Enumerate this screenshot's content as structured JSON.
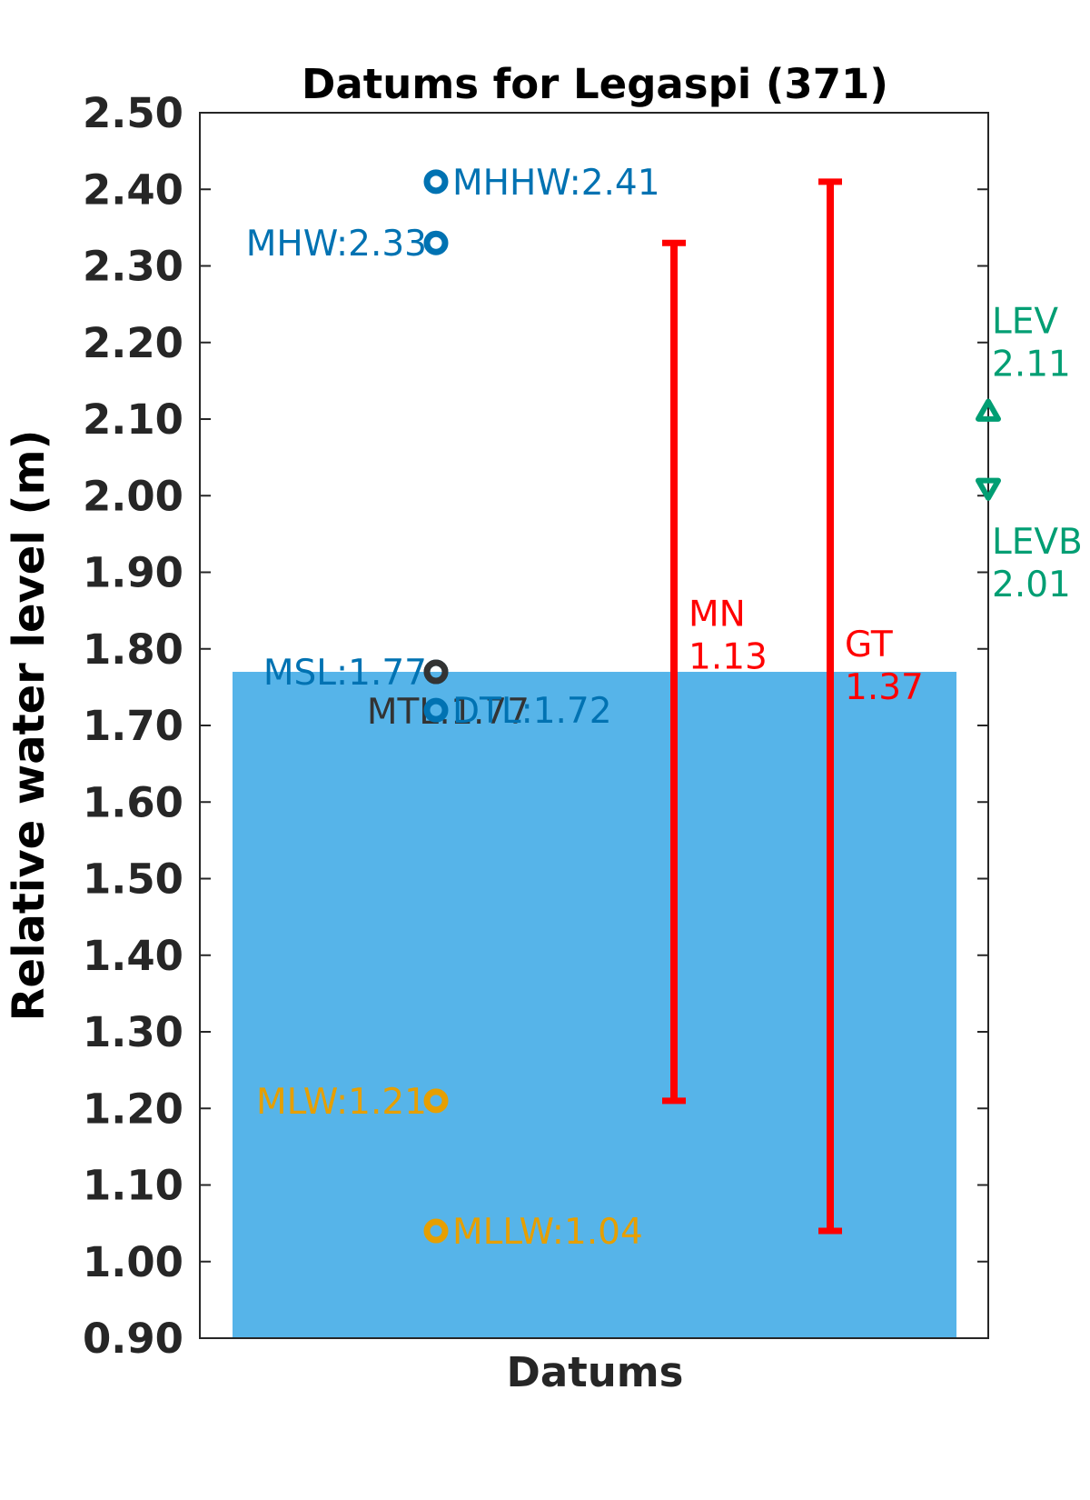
{
  "chart_data": {
    "type": "bar",
    "title": "Datums for Legaspi (371)",
    "xlabel": "Datums",
    "ylabel": "Relative water level (m)",
    "ylim": [
      0.9,
      2.5
    ],
    "yticks": [
      "0.90",
      "1.00",
      "1.10",
      "1.20",
      "1.30",
      "1.40",
      "1.50",
      "1.60",
      "1.70",
      "1.80",
      "1.90",
      "2.00",
      "2.10",
      "2.20",
      "2.30",
      "2.40",
      "2.50"
    ],
    "grid": false,
    "bar": {
      "name": "MSL",
      "value": 1.77,
      "color": "#56b4e9"
    },
    "points": [
      {
        "name": "MHHW",
        "value": 2.41,
        "label": "MHHW:2.41",
        "color": "#0072b2",
        "label_side": "right"
      },
      {
        "name": "MHW",
        "value": 2.33,
        "label": "MHW:2.33",
        "color": "#0072b2",
        "label_side": "left"
      },
      {
        "name": "MSL",
        "value": 1.77,
        "label": "MSL:1.77",
        "color": "#0072b2",
        "label_side": "left"
      },
      {
        "name": "MTL",
        "value": 1.77,
        "label": "MTL:1.77",
        "color": "#333333",
        "label_side": "left-below"
      },
      {
        "name": "DTL",
        "value": 1.72,
        "label": "DTL:1.72",
        "color": "#0072b2",
        "label_side": "right"
      },
      {
        "name": "MLW",
        "value": 1.21,
        "label": "MLW:1.21",
        "color": "#e69f00",
        "label_side": "left"
      },
      {
        "name": "MLLW",
        "value": 1.04,
        "label": "MLLW:1.04",
        "color": "#e69f00",
        "label_side": "right"
      }
    ],
    "ranges": [
      {
        "name": "MN",
        "low": 1.21,
        "high": 2.33,
        "label_name": "MN",
        "label_value": "1.13",
        "color": "#ff0000"
      },
      {
        "name": "GT",
        "low": 1.04,
        "high": 2.41,
        "label_name": "GT",
        "label_value": "1.37",
        "color": "#ff0000"
      }
    ],
    "extremes": [
      {
        "name": "LEV",
        "value": 2.11,
        "label_name": "LEV",
        "label_value": "2.11",
        "marker": "triangle-up",
        "color": "#009e73"
      },
      {
        "name": "LEVB",
        "value": 2.01,
        "label_name": "LEVB",
        "label_value": "2.01",
        "marker": "triangle-down",
        "color": "#009e73"
      }
    ]
  }
}
